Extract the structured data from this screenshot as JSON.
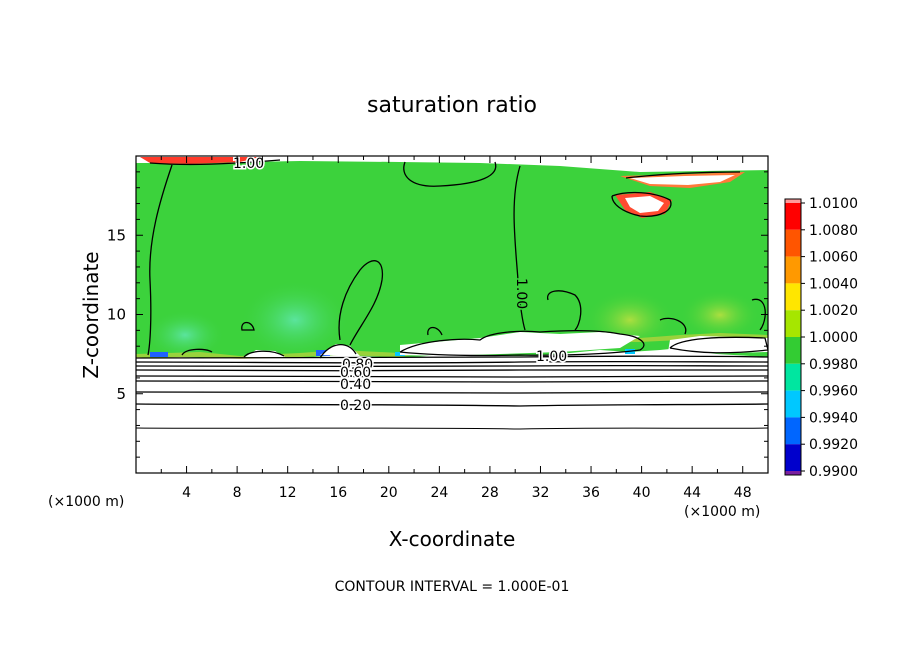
{
  "chart_data": {
    "type": "heatmap",
    "title": "saturation ratio",
    "xlabel": "X-coordinate",
    "ylabel": "Z-coordinate",
    "x_unit_left": "(×1000 m)",
    "x_unit_right": "(×1000 m)",
    "xlim": [
      0,
      50
    ],
    "ylim": [
      0,
      20
    ],
    "x_ticks": [
      "4",
      "8",
      "12",
      "16",
      "20",
      "24",
      "28",
      "32",
      "36",
      "40",
      "44",
      "48"
    ],
    "y_ticks": [
      "5",
      "10",
      "15"
    ],
    "contour_interval_note": "CONTOUR INTERVAL = 1.000E-01",
    "contour_labels": [
      {
        "text": "1.00",
        "x": 8.5,
        "y": 19.5
      },
      {
        "text": "1.00",
        "x": 30.0,
        "y": 11.3
      },
      {
        "text": "1.00",
        "x": 33.0,
        "y": 7.5
      },
      {
        "text": "0.80",
        "x": 17.0,
        "y": 7.0
      },
      {
        "text": "0.60",
        "x": 17.0,
        "y": 6.4
      },
      {
        "text": "0.40",
        "x": 17.0,
        "y": 5.6
      },
      {
        "text": "0.20",
        "x": 17.0,
        "y": 4.3
      }
    ],
    "colorbar": {
      "labels": [
        "1.0100",
        "1.0080",
        "1.0060",
        "1.0040",
        "1.0020",
        "1.0000",
        "0.9980",
        "0.9960",
        "0.9940",
        "0.9920",
        "0.9900"
      ],
      "colors": [
        "#ff0000",
        "#ff5500",
        "#ff9900",
        "#ffe600",
        "#a6e600",
        "#33cc33",
        "#00e6a0",
        "#00c8ff",
        "#0066ff",
        "#0000cc"
      ],
      "top_color": "#ff9a9a",
      "bottom_color": "#7a1fa0"
    },
    "field_summary": {
      "bulk_color": "#3cd23c",
      "subsaturated_color": "#ffffff",
      "boundary_height": 7.3,
      "lower_contour_levels": [
        0.1,
        0.2,
        0.3,
        0.4,
        0.5,
        0.6,
        0.7,
        0.8,
        0.9
      ],
      "lower_contour_heights": [
        2.8,
        4.3,
        5.0,
        5.6,
        6.0,
        6.4,
        6.8,
        7.0,
        7.2
      ]
    }
  }
}
